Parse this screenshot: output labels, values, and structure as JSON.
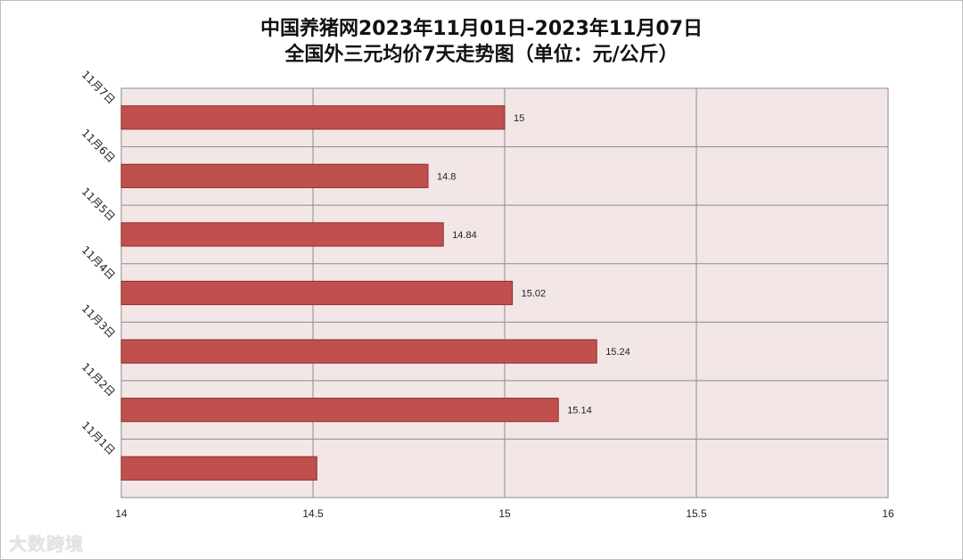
{
  "chart_data": {
    "type": "bar",
    "orientation": "horizontal",
    "title": "中国养猪网2023年11月01日-2023年11月07日",
    "subtitle": "全国外三元均价7天走势图（单位：元/公斤）",
    "categories": [
      "11月7日",
      "11月6日",
      "11月5日",
      "11月4日",
      "11月3日",
      "11月2日",
      "11月1日"
    ],
    "values": [
      15,
      14.8,
      14.84,
      15.02,
      15.24,
      15.14,
      14.51
    ],
    "data_labels": [
      "15",
      "14.8",
      "14.84",
      "15.02",
      "15.24",
      "15.14",
      ""
    ],
    "xlim": [
      14,
      16
    ],
    "x_ticks": [
      "14",
      "14.5",
      "15",
      "15.5",
      "16"
    ],
    "grid": true,
    "colors": {
      "bar": "#c0504d",
      "bar_edge": "#8b2e2b",
      "plot_bg": "#f3e6e6",
      "grid": "#8c8c8c"
    }
  },
  "watermark": "大数跨境"
}
